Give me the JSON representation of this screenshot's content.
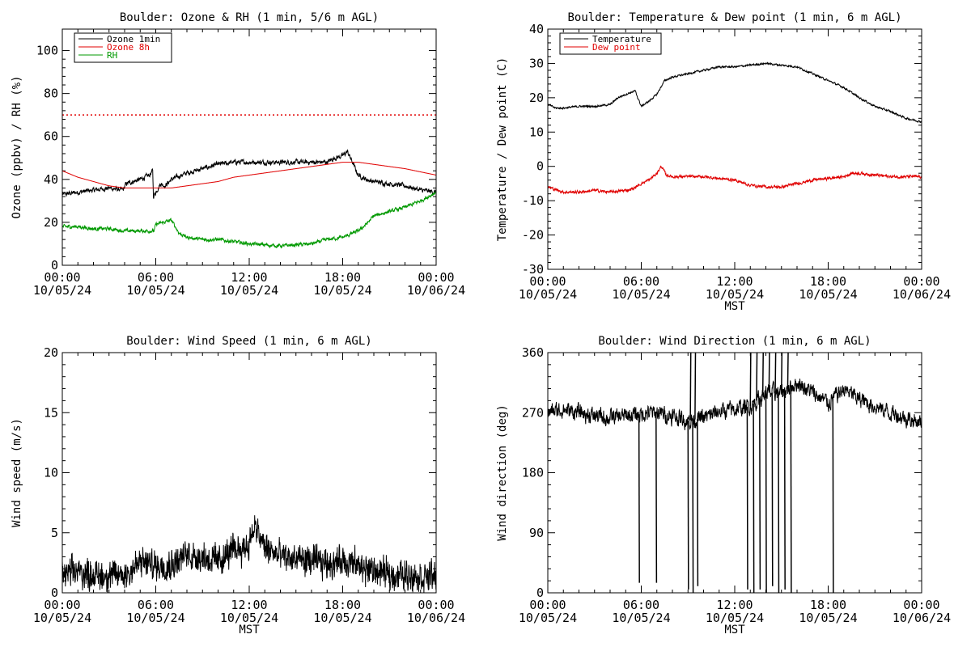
{
  "colors": {
    "black": "#000000",
    "red": "#e00000",
    "green": "#009900"
  },
  "chart_data": [
    {
      "type": "line",
      "title": "Boulder: Ozone & RH (1 min, 5/6 m AGL)",
      "ylabel": "Ozone (ppbv) / RH (%)",
      "xlabel": "",
      "ylim": [
        0,
        110
      ],
      "xlim": [
        0,
        24
      ],
      "yticks": [
        0,
        20,
        40,
        60,
        80,
        100
      ],
      "xticks": [
        {
          "pos": 0,
          "time": "00:00",
          "date": "10/05/24"
        },
        {
          "pos": 6,
          "time": "06:00",
          "date": "10/05/24"
        },
        {
          "pos": 12,
          "time": "12:00",
          "date": "10/05/24"
        },
        {
          "pos": 18,
          "time": "18:00",
          "date": "10/05/24"
        },
        {
          "pos": 24,
          "time": "00:00",
          "date": "10/06/24"
        }
      ],
      "legend": {
        "placement": "top-left",
        "entries": [
          "Ozone 1min",
          "Ozone 8h",
          "RH"
        ]
      },
      "reference_line": {
        "y": 70,
        "style": "dotted",
        "color": "#e00000"
      },
      "series": [
        {
          "name": "Ozone 1min",
          "color": "#000000",
          "noise": 1.6,
          "x": [
            0,
            1,
            2,
            3,
            3.9,
            4.1,
            5,
            5.6,
            5.8,
            5.85,
            6,
            6.3,
            6.6,
            7,
            8,
            9,
            10,
            11,
            12,
            13,
            14,
            15,
            16,
            17,
            17.5,
            18,
            18.3,
            18.5,
            19,
            19.5,
            20,
            21,
            22,
            23,
            24
          ],
          "y": [
            33,
            34,
            35,
            36,
            35,
            38,
            40,
            42,
            44,
            32,
            34,
            38,
            37,
            40,
            43,
            45,
            47,
            48,
            48,
            48,
            48,
            48,
            48,
            48,
            50,
            51,
            53,
            50,
            42,
            40,
            39,
            38,
            37,
            35,
            34
          ]
        },
        {
          "name": "Ozone 8h",
          "color": "#e00000",
          "noise": 0,
          "x": [
            0,
            1,
            2,
            3,
            4,
            5,
            6,
            7,
            8,
            9,
            10,
            11,
            12,
            13,
            14,
            15,
            16,
            17,
            18,
            19,
            20,
            21,
            22,
            23,
            24
          ],
          "y": [
            44,
            41,
            39,
            37,
            36,
            36,
            36,
            36,
            37,
            38,
            39,
            41,
            42,
            43,
            44,
            45,
            46,
            47,
            48,
            48,
            47,
            46,
            45,
            43.5,
            42
          ]
        },
        {
          "name": "RH",
          "color": "#009900",
          "noise": 1.2,
          "x": [
            0,
            1,
            2,
            3,
            4,
            5,
            5.9,
            6,
            6.5,
            7,
            7.5,
            8,
            9,
            10,
            11,
            12,
            13,
            14,
            15,
            16,
            17,
            18,
            19,
            19.5,
            20,
            21,
            22,
            23,
            24
          ],
          "y": [
            18,
            18,
            17,
            17,
            16,
            16,
            16,
            19,
            20,
            21,
            15,
            13,
            12,
            12,
            11,
            10,
            9.5,
            9,
            9.5,
            10,
            12,
            13,
            16,
            19,
            23,
            25,
            27,
            30,
            34
          ]
        }
      ]
    },
    {
      "type": "line",
      "title": "Boulder: Temperature & Dew point (1 min, 6 m AGL)",
      "ylabel": "Temperature / Dew point (C)",
      "xlabel": "MST",
      "ylim": [
        -30,
        40
      ],
      "xlim": [
        0,
        24
      ],
      "yticks": [
        -30,
        -20,
        -10,
        0,
        10,
        20,
        30,
        40
      ],
      "xticks": [
        {
          "pos": 0,
          "time": "00:00",
          "date": "10/05/24"
        },
        {
          "pos": 6,
          "time": "06:00",
          "date": "10/05/24"
        },
        {
          "pos": 12,
          "time": "12:00",
          "date": "10/05/24"
        },
        {
          "pos": 18,
          "time": "18:00",
          "date": "10/05/24"
        },
        {
          "pos": 24,
          "time": "00:00",
          "date": "10/06/24"
        }
      ],
      "legend": {
        "placement": "top-left",
        "entries": [
          "Temperature",
          "Dew point"
        ]
      },
      "series": [
        {
          "name": "Temperature",
          "color": "#000000",
          "noise": 0.4,
          "x": [
            0,
            0.5,
            1,
            2,
            3,
            4,
            4.5,
            5,
            5.6,
            6,
            6.5,
            7,
            7.5,
            8,
            9,
            10,
            11,
            12,
            13,
            14,
            15,
            16,
            17,
            18,
            19,
            20,
            21,
            22,
            23,
            24
          ],
          "y": [
            18,
            17,
            17,
            17.5,
            17.5,
            18,
            20,
            21,
            22,
            17.5,
            19,
            21,
            25,
            26,
            27,
            28,
            29,
            29,
            29.5,
            30,
            29.5,
            29,
            27,
            25,
            23,
            20,
            17.5,
            16,
            14,
            13
          ]
        },
        {
          "name": "Dew point",
          "color": "#e00000",
          "noise": 0.6,
          "x": [
            0,
            1,
            2,
            3,
            4,
            5,
            5.5,
            6,
            6.5,
            7,
            7.3,
            7.6,
            8,
            9,
            10,
            11,
            12,
            13,
            14,
            15,
            16,
            17,
            18,
            19,
            19.5,
            20,
            21,
            22,
            23,
            24
          ],
          "y": [
            -6,
            -7.5,
            -7.5,
            -7,
            -7.5,
            -7,
            -6.5,
            -5,
            -4,
            -2,
            0,
            -2.5,
            -3,
            -3,
            -3,
            -3.5,
            -4,
            -5.5,
            -6,
            -6,
            -5,
            -4,
            -3.5,
            -3,
            -2,
            -2,
            -2.5,
            -3,
            -3,
            -3
          ]
        }
      ]
    },
    {
      "type": "line",
      "title": "Boulder: Wind Speed (1 min, 6 m AGL)",
      "ylabel": "Wind speed (m/s)",
      "xlabel": "MST",
      "ylim": [
        0,
        20
      ],
      "xlim": [
        0,
        24
      ],
      "yticks": [
        0,
        5,
        10,
        15,
        20
      ],
      "xticks": [
        {
          "pos": 0,
          "time": "00:00",
          "date": "10/05/24"
        },
        {
          "pos": 6,
          "time": "06:00",
          "date": "10/05/24"
        },
        {
          "pos": 12,
          "time": "12:00",
          "date": "10/05/24"
        },
        {
          "pos": 18,
          "time": "18:00",
          "date": "10/05/24"
        },
        {
          "pos": 24,
          "time": "00:00",
          "date": "10/06/24"
        }
      ],
      "series": [
        {
          "name": "",
          "color": "#000000",
          "noise": 1.1,
          "x": [
            0,
            1,
            2,
            3,
            4,
            5,
            6,
            7,
            8,
            9,
            10,
            11,
            12,
            12.3,
            13,
            14,
            15,
            16,
            17,
            18,
            19,
            20,
            21,
            22,
            23,
            24
          ],
          "y": [
            1.5,
            1.8,
            1.5,
            1.4,
            1.5,
            2.5,
            2.3,
            2.4,
            3.2,
            3.0,
            2.6,
            3.6,
            4.0,
            5.5,
            3.8,
            3.0,
            2.8,
            2.6,
            2.5,
            2.7,
            2.2,
            1.8,
            1.5,
            1.5,
            1.4,
            1.3
          ]
        }
      ]
    },
    {
      "type": "line",
      "title": "Boulder: Wind Direction (1 min, 6 m AGL)",
      "ylabel": "Wind direction (deg)",
      "xlabel": "MST",
      "ylim": [
        0,
        360
      ],
      "xlim": [
        0,
        24
      ],
      "yticks": [
        0,
        90,
        180,
        270,
        360
      ],
      "xticks": [
        {
          "pos": 0,
          "time": "00:00",
          "date": "10/05/24"
        },
        {
          "pos": 6,
          "time": "06:00",
          "date": "10/05/24"
        },
        {
          "pos": 12,
          "time": "12:00",
          "date": "10/05/24"
        },
        {
          "pos": 18,
          "time": "18:00",
          "date": "10/05/24"
        },
        {
          "pos": 24,
          "time": "00:00",
          "date": "10/06/24"
        }
      ],
      "series": [
        {
          "name": "",
          "color": "#000000",
          "noise": 18,
          "x": [
            0,
            1,
            2,
            3,
            4,
            5,
            6,
            7,
            8,
            9,
            10,
            11,
            12,
            13,
            14,
            15,
            16,
            17,
            18,
            19,
            20,
            21,
            22,
            23,
            24
          ],
          "y": [
            270,
            275,
            270,
            265,
            262,
            265,
            268,
            270,
            265,
            258,
            262,
            272,
            275,
            280,
            300,
            300,
            315,
            300,
            285,
            305,
            290,
            280,
            270,
            262,
            255
          ],
          "drops": [
            {
              "x": 5.85,
              "y": 15
            },
            {
              "x": 6.95,
              "y": 15
            },
            {
              "x": 9.0,
              "y": 5
            },
            {
              "x": 9.15,
              "y": 360
            },
            {
              "x": 9.3,
              "y": 0
            },
            {
              "x": 9.45,
              "y": 360
            },
            {
              "x": 9.6,
              "y": 10
            },
            {
              "x": 12.8,
              "y": 5
            },
            {
              "x": 13.0,
              "y": 360
            },
            {
              "x": 13.2,
              "y": 0
            },
            {
              "x": 13.4,
              "y": 360
            },
            {
              "x": 13.6,
              "y": 5
            },
            {
              "x": 13.8,
              "y": 360
            },
            {
              "x": 14.0,
              "y": 0
            },
            {
              "x": 14.2,
              "y": 360
            },
            {
              "x": 14.4,
              "y": 10
            },
            {
              "x": 14.6,
              "y": 360
            },
            {
              "x": 14.8,
              "y": 0
            },
            {
              "x": 15.0,
              "y": 360
            },
            {
              "x": 15.2,
              "y": 5
            },
            {
              "x": 15.4,
              "y": 360
            },
            {
              "x": 15.6,
              "y": 0
            },
            {
              "x": 18.3,
              "y": 0
            }
          ]
        }
      ]
    }
  ]
}
